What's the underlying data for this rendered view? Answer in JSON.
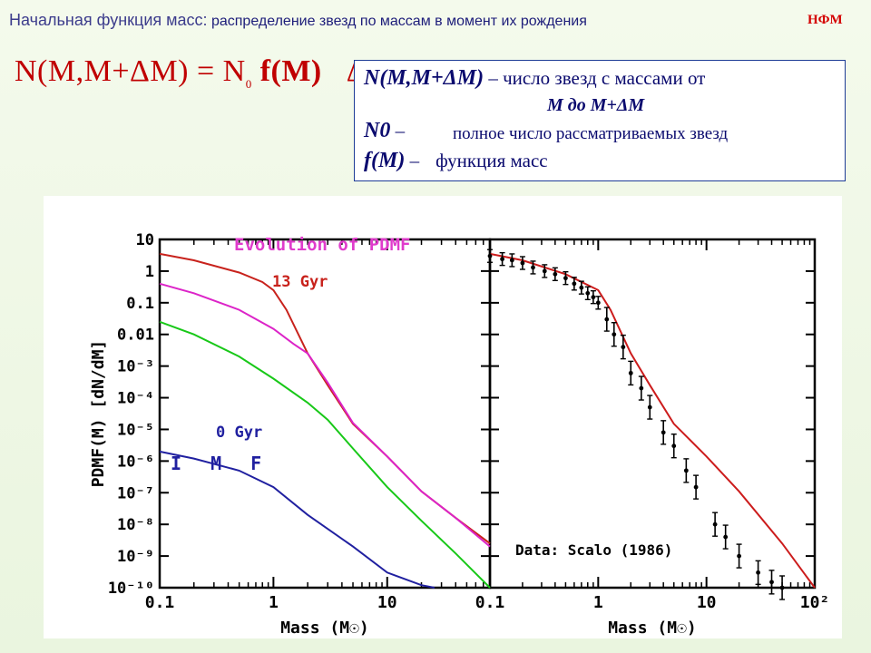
{
  "header": {
    "title_main": "Начальная функция масс:",
    "title_sub": "распределение звезд по массам в момент их рождения",
    "corner_tag": "НФМ"
  },
  "formula": {
    "lhs": "N(M,M+ΔM)",
    "eq": " = ",
    "n": "N",
    "n_sub": "0",
    "f": "f(M)",
    "dm": "ΔM"
  },
  "legend_box": {
    "line1_term": "N(M,M+ΔM)",
    "line1_def": " – число звезд с массами от",
    "line2": "М до М+ΔМ",
    "line3_term": "N0",
    "line3_dash": " –",
    "line3_def": "полное число рассматриваемых звезд",
    "line4_term": "f(M)",
    "line4_dash": " –",
    "line4_def": "функция масс"
  },
  "chart_data": [
    {
      "type": "line",
      "title": "Evolution of PDMF",
      "xlabel": "Mass (M☉)",
      "ylabel": "PDMF(M) [dN/dM]",
      "xscale": "log",
      "yscale": "log",
      "xlim": [
        0.1,
        80
      ],
      "ylim": [
        1e-10,
        10
      ],
      "xticks": [
        "0.1",
        "1",
        "10"
      ],
      "yticks": [
        "10",
        "1",
        "0.1",
        "0.01",
        "10⁻³",
        "10⁻⁴",
        "10⁻⁵",
        "10⁻⁶",
        "10⁻⁷",
        "10⁻⁸",
        "10⁻⁹",
        "10⁻¹⁰"
      ],
      "annotations": [
        "13 Gyr",
        "0 Gyr",
        "I M F"
      ],
      "series": [
        {
          "name": "13 Gyr",
          "color": "#c8221c",
          "x": [
            0.1,
            0.2,
            0.5,
            0.8,
            1.0,
            1.3,
            2.0,
            3.0,
            5.0,
            10.0,
            20.0,
            40.0,
            80.0
          ],
          "y": [
            3.5,
            2.2,
            0.9,
            0.45,
            0.25,
            0.06,
            0.0025,
            0.00025,
            1.5e-05,
            1.4e-06,
            1.1e-07,
            1.6e-08,
            2.5e-09
          ]
        },
        {
          "name": "",
          "color": "#dc24c8",
          "x": [
            0.1,
            0.2,
            0.5,
            1.0,
            1.5,
            2.0,
            3.0,
            5.0,
            10.0,
            20.0,
            40.0,
            80.0
          ],
          "y": [
            0.4,
            0.2,
            0.06,
            0.015,
            0.005,
            0.0025,
            0.0003,
            1.6e-05,
            1.4e-06,
            1.1e-07,
            1.6e-08,
            2e-09
          ]
        },
        {
          "name": "",
          "color": "#18c818",
          "x": [
            0.1,
            0.2,
            0.5,
            1.0,
            2.0,
            3.0,
            5.0,
            10.0,
            20.0,
            40.0,
            80.0
          ],
          "y": [
            0.025,
            0.01,
            0.002,
            0.0004,
            7e-05,
            2e-05,
            2.5e-06,
            1.5e-07,
            1.3e-08,
            1.2e-09,
            1e-10
          ]
        },
        {
          "name": "0 Gyr",
          "color": "#2020a0",
          "x": [
            0.1,
            0.2,
            0.5,
            1.0,
            2.0,
            5.0,
            10.0,
            20.0,
            26.0
          ],
          "y": [
            2e-06,
            1.2e-06,
            5e-07,
            1.5e-07,
            2e-08,
            2e-09,
            3e-10,
            1.2e-10,
            1e-10
          ]
        }
      ]
    },
    {
      "type": "scatter",
      "title": "",
      "xlabel": "Mass (M☉)",
      "ylabel": "",
      "xscale": "log",
      "yscale": "log",
      "xlim": [
        0.1,
        100
      ],
      "ylim": [
        1e-10,
        10
      ],
      "xticks": [
        "0.1",
        "1",
        "10",
        "10²"
      ],
      "annotations": [
        "Data: Scalo (1986)"
      ],
      "series": [
        {
          "name": "Data: Scalo (1986)",
          "type": "scatter_errorbars",
          "x": [
            0.1,
            0.13,
            0.16,
            0.2,
            0.25,
            0.32,
            0.4,
            0.5,
            0.6,
            0.7,
            0.8,
            0.9,
            1.0,
            1.2,
            1.4,
            1.7,
            2.0,
            2.5,
            3.0,
            4.0,
            5.0,
            6.5,
            8.0,
            12.0,
            15.0,
            20.0,
            30.0,
            40.0,
            50.0
          ],
          "y": [
            3,
            2.4,
            2.2,
            1.8,
            1.3,
            1,
            0.8,
            0.6,
            0.4,
            0.3,
            0.2,
            0.15,
            0.1,
            0.03,
            0.01,
            0.004,
            0.0006,
            0.0002,
            5e-05,
            8e-06,
            3e-06,
            5e-07,
            1.5e-07,
            1e-08,
            4e-09,
            1e-09,
            3e-10,
            1.5e-10,
            1e-10
          ]
        },
        {
          "name": "",
          "type": "line",
          "color": "#cc1c1c",
          "x": [
            0.1,
            0.2,
            0.5,
            1.0,
            1.3,
            2.0,
            3.0,
            5.0,
            10.0,
            20.0,
            50.0,
            100.0
          ],
          "y": [
            3.5,
            2.2,
            0.8,
            0.25,
            0.06,
            0.0025,
            0.00025,
            1.5e-05,
            1.4e-06,
            1.1e-07,
            2.5e-09,
            1e-10
          ]
        }
      ]
    }
  ]
}
